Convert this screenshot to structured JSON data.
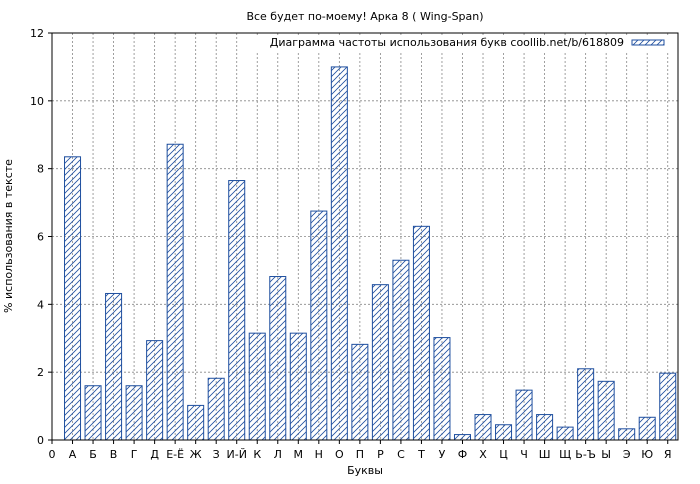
{
  "chart_data": {
    "type": "bar",
    "title": "Все будет по-моему! Арка 8 ( Wing-Span)",
    "xlabel": "Буквы",
    "ylabel": "% использования в тексте",
    "legend": "Диаграмма частоты использования букв coollib.net/b/618809",
    "legend_position": "top-right",
    "grid": true,
    "ylim": [
      0,
      12
    ],
    "yticks": [
      0,
      2,
      4,
      6,
      8,
      10,
      12
    ],
    "x_axis_start_label": "0",
    "categories": [
      "А",
      "Б",
      "В",
      "Г",
      "Д",
      "Е-Ё",
      "Ж",
      "З",
      "И-Й",
      "К",
      "Л",
      "М",
      "Н",
      "О",
      "П",
      "Р",
      "С",
      "Т",
      "У",
      "Ф",
      "Х",
      "Ц",
      "Ч",
      "Ш",
      "Щ",
      "Ь-Ъ",
      "Ы",
      "Э",
      "Ю",
      "Я"
    ],
    "values": [
      8.35,
      1.6,
      4.32,
      1.6,
      2.93,
      8.72,
      1.02,
      1.82,
      7.65,
      3.15,
      4.82,
      3.15,
      6.75,
      11.0,
      2.82,
      4.58,
      5.3,
      6.3,
      3.02,
      0.16,
      0.75,
      0.45,
      1.47,
      0.75,
      0.38,
      2.1,
      1.73,
      0.33,
      0.67,
      1.97
    ],
    "colors": {
      "bar_edge": "#1f4f9f",
      "hatch": "#1f4f9f",
      "grid": "#888888"
    }
  }
}
